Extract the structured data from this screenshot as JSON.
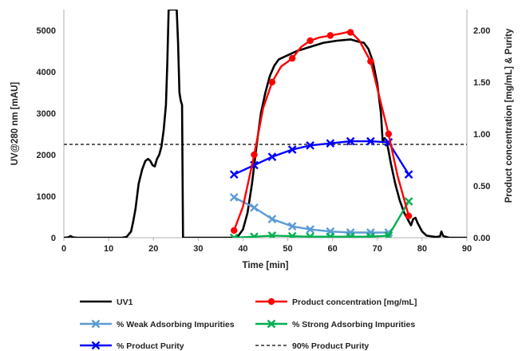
{
  "chart_data": {
    "type": "line",
    "xlabel": "Time [min]",
    "ylabel_left": "UV@280 nm [mAU]",
    "ylabel_right": "Product concentration [mg/mL]  & Purity",
    "xlim": [
      0,
      90
    ],
    "ylim_left": [
      0,
      5500
    ],
    "ylim_right": [
      0,
      2.2
    ],
    "x_ticks": [
      "0",
      "10",
      "20",
      "30",
      "40",
      "50",
      "60",
      "70",
      "80",
      "90"
    ],
    "y_left_ticks": [
      "0",
      "1000",
      "2000",
      "3000",
      "4000",
      "5000"
    ],
    "y_right_ticks": [
      "0.00",
      "0.50",
      "1.00",
      "1.50",
      "2.00"
    ],
    "grid": false,
    "legend_position": "bottom",
    "series": [
      {
        "name": "UV1",
        "axis": "left",
        "color": "#000000",
        "marker": "none",
        "points": [
          [
            0,
            0
          ],
          [
            1,
            10
          ],
          [
            1.5,
            40
          ],
          [
            2,
            10
          ],
          [
            3,
            0
          ],
          [
            10,
            0
          ],
          [
            13,
            0
          ],
          [
            14,
            20
          ],
          [
            15,
            150
          ],
          [
            15.5,
            400
          ],
          [
            16,
            700
          ],
          [
            16.7,
            1300
          ],
          [
            17.5,
            1650
          ],
          [
            18.2,
            1850
          ],
          [
            18.8,
            1900
          ],
          [
            19.3,
            1850
          ],
          [
            19.8,
            1750
          ],
          [
            20.3,
            1720
          ],
          [
            20.8,
            1900
          ],
          [
            21.3,
            2000
          ],
          [
            21.8,
            2200
          ],
          [
            22.3,
            2600
          ],
          [
            22.8,
            3200
          ],
          [
            23.1,
            4200
          ],
          [
            23.4,
            5500
          ],
          [
            25.2,
            5500
          ],
          [
            25.5,
            4700
          ],
          [
            25.8,
            3500
          ],
          [
            26.1,
            3300
          ],
          [
            26.4,
            3200
          ],
          [
            26.6,
            0
          ],
          [
            27,
            0
          ],
          [
            36,
            0
          ],
          [
            38,
            0
          ],
          [
            39,
            50
          ],
          [
            40,
            200
          ],
          [
            41,
            600
          ],
          [
            42,
            1300
          ],
          [
            43,
            2200
          ],
          [
            44,
            3000
          ],
          [
            45,
            3500
          ],
          [
            46,
            3900
          ],
          [
            47,
            4150
          ],
          [
            48,
            4300
          ],
          [
            50,
            4400
          ],
          [
            52,
            4500
          ],
          [
            55,
            4600
          ],
          [
            58,
            4700
          ],
          [
            61,
            4750
          ],
          [
            64,
            4780
          ],
          [
            66,
            4720
          ],
          [
            67,
            4700
          ],
          [
            68,
            4550
          ],
          [
            69,
            4250
          ],
          [
            70,
            3700
          ],
          [
            70.8,
            3000
          ],
          [
            71.2,
            2300
          ],
          [
            71.6,
            2400
          ],
          [
            72,
            2350
          ],
          [
            72.5,
            2100
          ],
          [
            73,
            1800
          ],
          [
            74,
            1300
          ],
          [
            75,
            900
          ],
          [
            76,
            600
          ],
          [
            77,
            400
          ],
          [
            77.5,
            300
          ],
          [
            78,
            450
          ],
          [
            78.5,
            480
          ],
          [
            79,
            350
          ],
          [
            80,
            150
          ],
          [
            81,
            50
          ],
          [
            83,
            20
          ],
          [
            84,
            30
          ],
          [
            84.3,
            150
          ],
          [
            84.7,
            40
          ],
          [
            86,
            0
          ],
          [
            90,
            0
          ]
        ]
      },
      {
        "name": "Product concentration [mg/mL]",
        "axis": "right",
        "color": "#ff0000",
        "marker": "circle",
        "points": [
          [
            38,
            0.07
          ],
          [
            42.5,
            0.8
          ],
          [
            46.5,
            1.5
          ],
          [
            51,
            1.73
          ],
          [
            55,
            1.9
          ],
          [
            59.5,
            1.95
          ],
          [
            64,
            1.98
          ],
          [
            68.5,
            1.7
          ],
          [
            72.5,
            1.0
          ],
          [
            77,
            0.21
          ]
        ],
        "line_points": [
          [
            38,
            0.07
          ],
          [
            40,
            0.3
          ],
          [
            42.5,
            0.8
          ],
          [
            44.5,
            1.25
          ],
          [
            46.5,
            1.5
          ],
          [
            48.5,
            1.65
          ],
          [
            51,
            1.73
          ],
          [
            53,
            1.84
          ],
          [
            55,
            1.9
          ],
          [
            57,
            1.93
          ],
          [
            59.5,
            1.95
          ],
          [
            62,
            1.97
          ],
          [
            64,
            1.99
          ],
          [
            66,
            1.9
          ],
          [
            68.5,
            1.7
          ],
          [
            70.5,
            1.35
          ],
          [
            72.5,
            1.0
          ],
          [
            74.5,
            0.6
          ],
          [
            77,
            0.21
          ]
        ]
      },
      {
        "name": "% Weak Adsorbing Impurities",
        "axis": "right",
        "color": "#5b9bd5",
        "marker": "x",
        "points": [
          [
            38,
            0.39
          ],
          [
            42.5,
            0.29
          ],
          [
            46.5,
            0.18
          ],
          [
            51,
            0.11
          ],
          [
            55,
            0.08
          ],
          [
            59.5,
            0.06
          ],
          [
            64,
            0.05
          ],
          [
            68.5,
            0.05
          ],
          [
            72.5,
            0.05
          ]
        ]
      },
      {
        "name": "% Strong Adsorbing Impurities",
        "axis": "right",
        "color": "#00b050",
        "marker": "x",
        "points": [
          [
            38,
            0.0
          ],
          [
            42.5,
            0.01
          ],
          [
            46.5,
            0.02
          ],
          [
            51,
            0.015
          ],
          [
            55,
            0.01
          ],
          [
            59.5,
            0.01
          ],
          [
            64,
            0.01
          ],
          [
            68.5,
            0.01
          ],
          [
            72.5,
            0.02
          ],
          [
            77,
            0.35
          ]
        ]
      },
      {
        "name": "% Product Purity",
        "axis": "right",
        "color": "#0000ff",
        "marker": "x",
        "points": [
          [
            38,
            0.61
          ],
          [
            42.5,
            0.7
          ],
          [
            46.5,
            0.78
          ],
          [
            51,
            0.85
          ],
          [
            55,
            0.89
          ],
          [
            59.5,
            0.91
          ],
          [
            64,
            0.93
          ],
          [
            68.5,
            0.93
          ],
          [
            72.5,
            0.92
          ],
          [
            77,
            0.61
          ]
        ]
      },
      {
        "name": "90% Product Purity",
        "axis": "right",
        "color": "#000000",
        "marker": "none",
        "dashed": true,
        "points": [
          [
            0,
            0.9
          ],
          [
            90,
            0.9
          ]
        ]
      }
    ]
  }
}
